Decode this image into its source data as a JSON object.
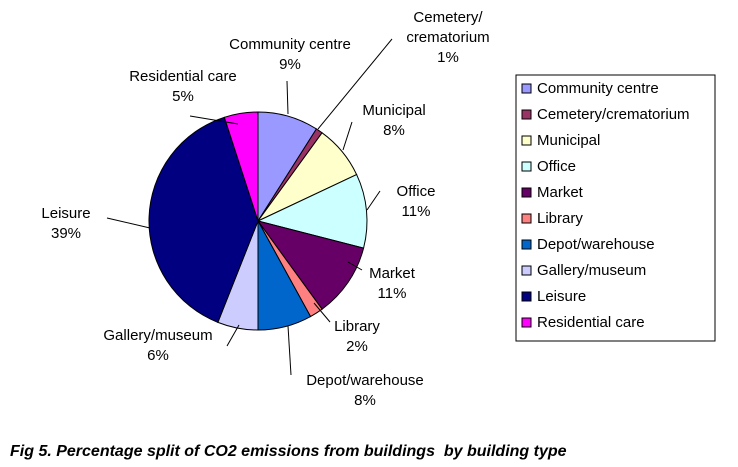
{
  "caption": "Fig 5. Percentage split of CO2 emissions from buildings  by building type",
  "chart_data": {
    "type": "pie",
    "title": "",
    "legend_position": "right",
    "slices": [
      {
        "name": "Community centre",
        "value": 9,
        "label": "9%",
        "color": "#9999ff"
      },
      {
        "name": "Cemetery/crematorium",
        "value": 1,
        "label": "1%",
        "color": "#993366",
        "label_lines": [
          "Cemetery/",
          "crematorium"
        ]
      },
      {
        "name": "Municipal",
        "value": 8,
        "label": "8%",
        "color": "#ffffcc"
      },
      {
        "name": "Office",
        "value": 11,
        "label": "11%",
        "color": "#ccffff"
      },
      {
        "name": "Market",
        "value": 11,
        "label": "11%",
        "color": "#660066"
      },
      {
        "name": "Library",
        "value": 2,
        "label": "2%",
        "color": "#ff8080"
      },
      {
        "name": "Depot/warehouse",
        "value": 8,
        "label": "8%",
        "color": "#0066cc"
      },
      {
        "name": "Gallery/museum",
        "value": 6,
        "label": "6%",
        "color": "#ccccff"
      },
      {
        "name": "Leisure",
        "value": 39,
        "label": "39%",
        "color": "#000080"
      },
      {
        "name": "Residential care",
        "value": 5,
        "label": "5%",
        "color": "#ff00ff"
      }
    ]
  }
}
